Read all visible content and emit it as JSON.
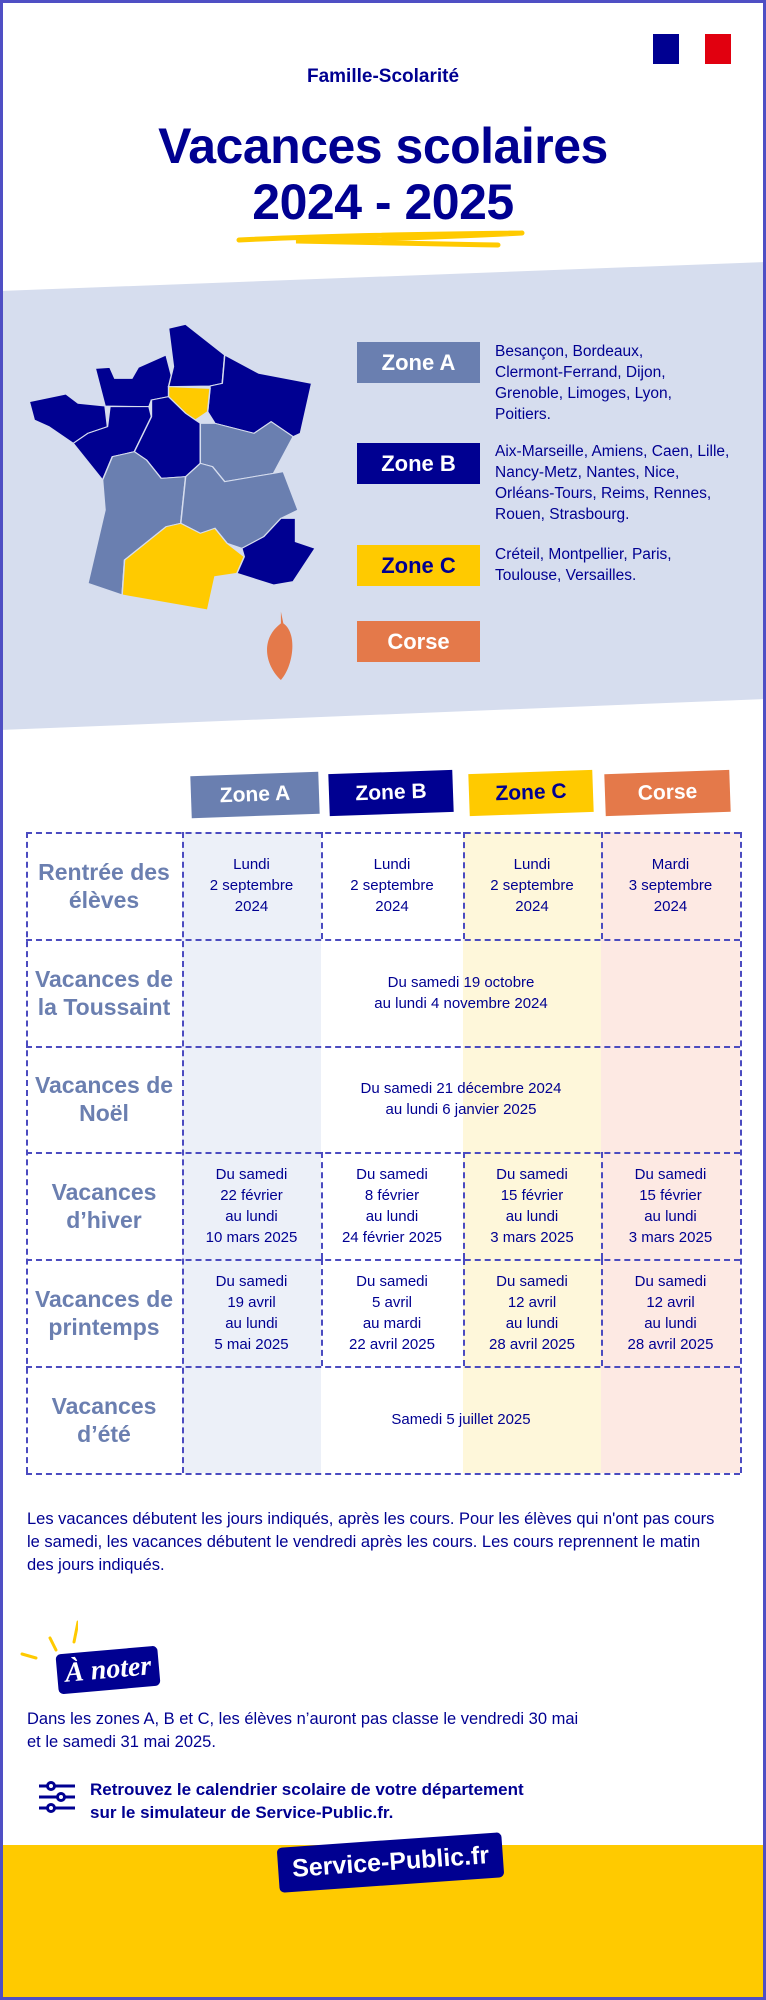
{
  "header": {
    "category": "Famille-Scolarité",
    "title_line1": "Vacances scolaires",
    "title_line2": "2024 - 2025",
    "flag_colors": [
      "#000091",
      "#ffffff",
      "#e1000f"
    ]
  },
  "map": {
    "zones": [
      {
        "label": "Zone A",
        "color": "#6a7fb0",
        "cities": "Besançon, Bordeaux, Clermont-Ferrand, Dijon, Grenoble, Limoges, Lyon, Poitiers."
      },
      {
        "label": "Zone B",
        "color": "#000091",
        "cities": "Aix-Marseille, Amiens, Caen, Lille, Nancy-Metz, Nantes, Nice, Orléans-Tours, Reims, Rennes, Rouen, Strasbourg."
      },
      {
        "label": "Zone C",
        "color": "#ffca00",
        "cities": "Créteil, Montpellier, Paris, Toulouse, Versailles."
      },
      {
        "label": "Corse",
        "color": "#e4794a",
        "cities": ""
      }
    ]
  },
  "table": {
    "headers": [
      "Zone A",
      "Zone B",
      "Zone C",
      "Corse"
    ],
    "column_tints": [
      "#ecf0f8",
      "#ffffff",
      "#fef7da",
      "#fde9e3"
    ],
    "rows": [
      {
        "label": "Rentrée des élèves",
        "cells": [
          "Lundi\n2 septembre\n2024",
          "Lundi\n2 septembre\n2024",
          "Lundi\n2 septembre\n2024",
          "Mardi\n3 septembre\n2024"
        ]
      },
      {
        "label": "Vacances de la Toussaint",
        "merged": "Du samedi 19 octobre\nau lundi 4 novembre 2024"
      },
      {
        "label": "Vacances de Noël",
        "merged": "Du samedi 21 décembre 2024\nau lundi 6 janvier 2025"
      },
      {
        "label": "Vacances d’hiver",
        "cells": [
          "Du samedi\n22 février\nau lundi\n10 mars 2025",
          "Du samedi\n8 février\nau lundi\n24 février 2025",
          "Du samedi\n15 février\nau lundi\n3 mars 2025",
          "Du samedi\n15 février\nau lundi\n3 mars 2025"
        ]
      },
      {
        "label": "Vacances de printemps",
        "cells": [
          "Du samedi\n19 avril\nau lundi\n5 mai 2025",
          "Du samedi\n5 avril\nau mardi\n22 avril 2025",
          "Du samedi\n12 avril\nau lundi\n28 avril 2025",
          "Du samedi\n12 avril\nau lundi\n28 avril 2025"
        ]
      },
      {
        "label": "Vacances d’été",
        "merged": "Samedi 5 juillet 2025"
      }
    ]
  },
  "notes": {
    "intro": "Les vacances débutent les jours indiqués, après les cours. Pour les élèves qui n'ont pas cours le samedi, les vacances débutent le vendredi après les cours. Les cours reprennent le matin des jours indiqués.",
    "badge": "À noter",
    "important": "Dans les zones A, B et C, les élèves n’auront pas classe le vendredi 30 mai et le samedi 31 mai 2025.",
    "simulator_line1": "Retrouvez le calendrier scolaire de votre département",
    "simulator_line2": "sur le simulateur de Service-Public.fr."
  },
  "footer": {
    "brand": "Service-Public.fr",
    "color": "#ffca00"
  }
}
